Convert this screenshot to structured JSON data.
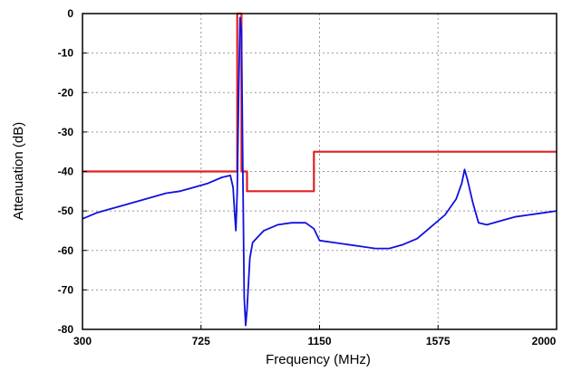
{
  "chart_data": {
    "type": "line",
    "title": "",
    "xlabel": "Frequency (MHz)",
    "ylabel": "Attenuation (dB)",
    "xlim": [
      300,
      2000
    ],
    "ylim": [
      -80,
      0
    ],
    "x_ticks": [
      300,
      725,
      1150,
      1575,
      2000
    ],
    "y_ticks": [
      0,
      -10,
      -20,
      -30,
      -40,
      -50,
      -60,
      -70,
      -80
    ],
    "x_tick_labels": [
      "300",
      "725",
      "1150",
      "1575",
      "2000"
    ],
    "y_tick_labels": [
      "0",
      "-10",
      "-20",
      "-30",
      "-40",
      "-50",
      "-60",
      "-70",
      "-80"
    ],
    "grid": true,
    "legend": "none",
    "series": [
      {
        "color": "#e02020",
        "x": [
          300,
          855,
          855,
          870,
          870,
          890,
          890,
          1120,
          1120,
          1130,
          1130,
          2000
        ],
        "y": [
          -40,
          -40,
          0,
          0,
          -40,
          -40,
          -45,
          -45,
          -45,
          -45,
          -35,
          -35
        ]
      },
      {
        "color": "#1010e0",
        "x": [
          300,
          350,
          400,
          450,
          500,
          550,
          600,
          650,
          700,
          750,
          800,
          830,
          840,
          845,
          850,
          855,
          860,
          865,
          870,
          875,
          880,
          885,
          890,
          900,
          910,
          950,
          1000,
          1050,
          1100,
          1130,
          1150,
          1200,
          1250,
          1300,
          1350,
          1400,
          1450,
          1500,
          1550,
          1600,
          1640,
          1660,
          1670,
          1680,
          1700,
          1720,
          1750,
          1800,
          1850,
          1900,
          1950,
          2000
        ],
        "y": [
          -52,
          -50.5,
          -49.5,
          -48.5,
          -47.5,
          -46.5,
          -45.5,
          -45,
          -44,
          -43,
          -41.5,
          -41,
          -44,
          -50,
          -55,
          -45,
          -20,
          -1,
          -5,
          -40,
          -72,
          -79,
          -75,
          -62,
          -58,
          -55,
          -53.5,
          -53,
          -53,
          -54.5,
          -57.5,
          -58,
          -58.5,
          -59,
          -59.5,
          -59.5,
          -58.5,
          -57,
          -54,
          -51,
          -47,
          -43,
          -39.5,
          -42,
          -48,
          -53,
          -53.5,
          -52.5,
          -51.5,
          -51,
          -50.5,
          -50
        ]
      }
    ]
  }
}
